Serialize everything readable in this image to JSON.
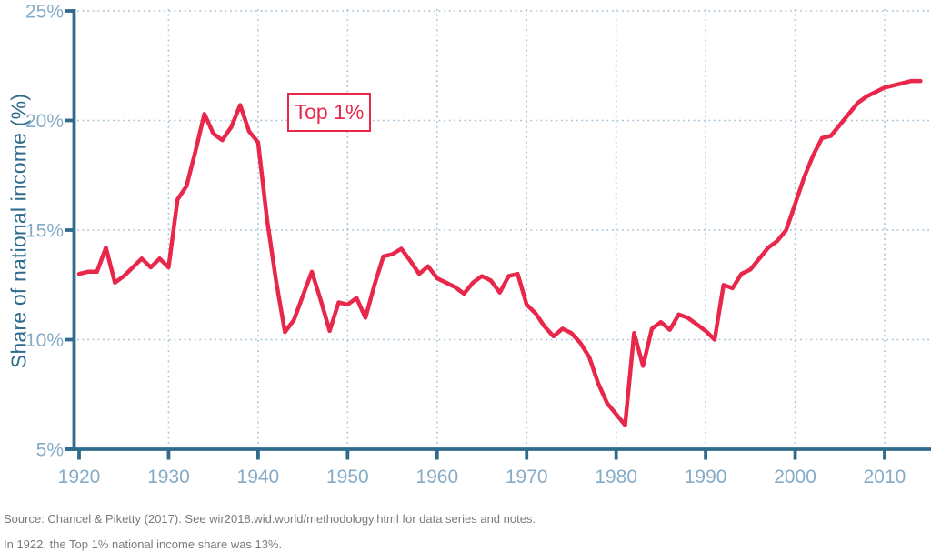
{
  "chart_data": {
    "type": "line",
    "title": "",
    "xlabel": "",
    "ylabel": "Share of national income (%)",
    "annotation": {
      "text": "Top 1%"
    },
    "source": "Source: Chancel & Piketty (2017). See wir2018.wid.world/methodology.html for data series and notes.",
    "note": "In 1922, the Top 1% national income share was 13%.",
    "xlim": [
      1920,
      2015
    ],
    "ylim": [
      5,
      25
    ],
    "grid": "dotted",
    "legend_position": "none",
    "x_ticks": [
      1920,
      1930,
      1940,
      1950,
      1960,
      1970,
      1980,
      1990,
      2000,
      2010
    ],
    "x_tick_labels": [
      "1920",
      "1930",
      "1940",
      "1950",
      "1960",
      "1970",
      "1980",
      "1990",
      "2000",
      "2010"
    ],
    "y_ticks": [
      5,
      10,
      15,
      20,
      25
    ],
    "y_tick_labels": [
      "5%",
      "10%",
      "15%",
      "20%",
      "25%"
    ],
    "series": [
      {
        "name": "Top 1%",
        "x": [
          1920,
          1921,
          1922,
          1923,
          1924,
          1925,
          1926,
          1927,
          1928,
          1929,
          1930,
          1931,
          1932,
          1933,
          1934,
          1935,
          1936,
          1937,
          1938,
          1939,
          1940,
          1941,
          1942,
          1943,
          1944,
          1945,
          1946,
          1947,
          1948,
          1949,
          1950,
          1951,
          1952,
          1953,
          1954,
          1955,
          1956,
          1957,
          1958,
          1959,
          1960,
          1961,
          1962,
          1963,
          1964,
          1965,
          1966,
          1967,
          1968,
          1969,
          1970,
          1971,
          1972,
          1973,
          1974,
          1975,
          1976,
          1977,
          1978,
          1979,
          1980,
          1981,
          1982,
          1983,
          1984,
          1985,
          1986,
          1987,
          1988,
          1989,
          1990,
          1991,
          1992,
          1993,
          1994,
          1995,
          1996,
          1997,
          1998,
          1999,
          2000,
          2001,
          2002,
          2003,
          2004,
          2005,
          2006,
          2007,
          2008,
          2009,
          2010,
          2011,
          2012,
          2013,
          2014
        ],
        "values": [
          13.0,
          13.1,
          13.1,
          14.2,
          12.6,
          12.9,
          13.3,
          13.7,
          13.3,
          13.7,
          13.3,
          16.4,
          17.0,
          18.6,
          20.3,
          19.4,
          19.1,
          19.7,
          20.7,
          19.5,
          19.0,
          15.5,
          12.7,
          10.35,
          10.9,
          12.0,
          13.1,
          11.8,
          10.4,
          11.7,
          11.6,
          11.9,
          11.0,
          12.5,
          13.8,
          13.9,
          14.15,
          13.6,
          13.0,
          13.35,
          12.8,
          12.6,
          12.4,
          12.1,
          12.6,
          12.9,
          12.7,
          12.15,
          12.9,
          13.0,
          11.6,
          11.2,
          10.6,
          10.15,
          10.5,
          10.3,
          9.85,
          9.2,
          8.0,
          7.1,
          6.6,
          6.1,
          10.3,
          8.8,
          10.5,
          10.8,
          10.45,
          11.15,
          11.0,
          10.7,
          10.4,
          10.0,
          12.5,
          12.35,
          13.0,
          13.2,
          13.7,
          14.2,
          14.5,
          15.0,
          16.2,
          17.4,
          18.4,
          19.2,
          19.3,
          19.8,
          20.3,
          20.8,
          21.1,
          21.3,
          21.5,
          21.6,
          21.7,
          21.8,
          21.8
        ]
      }
    ],
    "colors": {
      "line": "#e8274b",
      "axis": "#2e6b8d",
      "tick_labels": "#85abc7",
      "grid": "#a6c0d4",
      "footer_text": "#7b7b7b",
      "background": "#ffffff"
    }
  }
}
